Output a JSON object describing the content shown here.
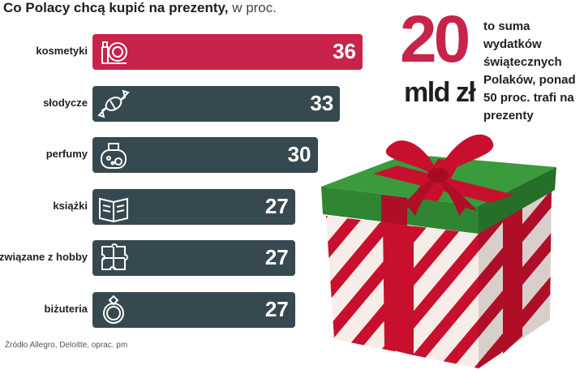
{
  "title": {
    "main": "Co Polacy chcą kupić na prezenty,",
    "unit": "w proc."
  },
  "highlight": {
    "value": "20",
    "unit": "mld zł",
    "text": "to suma wydatków świątecznych Polaków, ponad 50 proc. trafi na prezenty"
  },
  "source": "Źródło Allegro, Deloitte, oprac. pm",
  "colors": {
    "accent": "#c8234a",
    "bar": "#364951",
    "gift_green": "#3a9a3c",
    "ribbon": "#c8102e"
  },
  "chart_data": {
    "type": "bar",
    "orientation": "horizontal",
    "categories": [
      "kosmetyki",
      "słodycze",
      "perfumy",
      "książki",
      "związane z hobby",
      "biżuteria"
    ],
    "values": [
      36,
      33,
      30,
      27,
      27,
      27
    ],
    "value_labels": [
      "36",
      "33",
      "30",
      "27",
      "27",
      "27"
    ],
    "icons": [
      "cosmetics-icon",
      "candy-icon",
      "perfume-icon",
      "book-icon",
      "puzzle-icon",
      "ring-icon"
    ],
    "title": "Co Polacy chcą kupić na prezenty, w proc.",
    "xlim": [
      0,
      36
    ],
    "grid": false,
    "highlighted_category": "kosmetyki"
  }
}
